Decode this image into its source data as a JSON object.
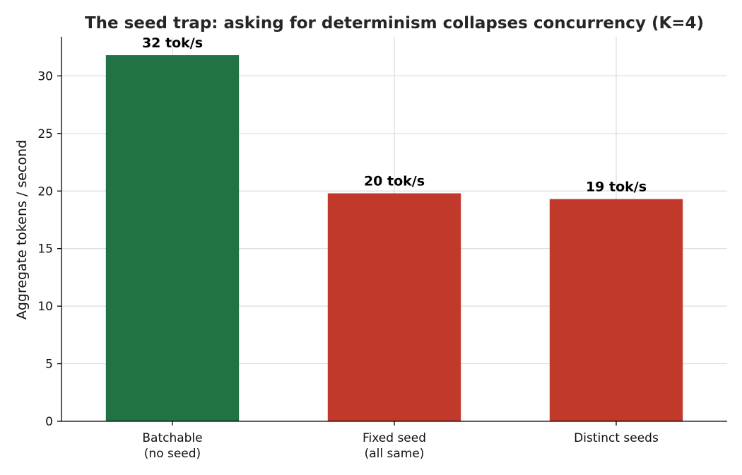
{
  "chart_data": {
    "type": "bar",
    "title": "The seed trap: asking for determinism collapses concurrency (K=4)",
    "xlabel": "",
    "ylabel": "Aggregate tokens / second",
    "ylim": [
      0,
      33.4
    ],
    "yticks": [
      0,
      5,
      10,
      15,
      20,
      25,
      30
    ],
    "grid": true,
    "categories": [
      [
        "Batchable",
        "(no seed)"
      ],
      [
        "Fixed seed",
        "(all same)"
      ],
      [
        "Distinct seeds"
      ]
    ],
    "values": [
      31.8,
      19.8,
      19.3
    ],
    "data_labels": [
      "32 tok/s",
      "20 tok/s",
      "19 tok/s"
    ],
    "colors": [
      "#217346",
      "#c0392b",
      "#c0392b"
    ]
  }
}
